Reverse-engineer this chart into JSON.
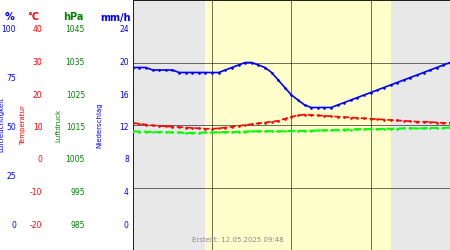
{
  "created_text": "Erstellt: 12.05.2025 09:48",
  "bg_day_color": "#ffffcc",
  "bg_night_color": "#e8e8e8",
  "day_start": 5.5,
  "day_end": 19.5,
  "pct_ylim": [
    0,
    100
  ],
  "temp_min": -20,
  "temp_max": 40,
  "hpa_min": 985,
  "hpa_max": 1045,
  "mm_min": 0,
  "mm_max": 24,
  "ylabel_left_pct": [
    0,
    25,
    50,
    75,
    100
  ],
  "ylabel_left_temp": [
    -20,
    -10,
    0,
    10,
    20,
    30,
    40
  ],
  "ylabel_left_hpa": [
    985,
    995,
    1005,
    1015,
    1025,
    1035,
    1045
  ],
  "ylabel_right_mm": [
    0,
    4,
    8,
    12,
    16,
    20,
    24
  ],
  "blue_humidity_data": [
    [
      0.0,
      73
    ],
    [
      0.5,
      73
    ],
    [
      1.0,
      73
    ],
    [
      1.5,
      72
    ],
    [
      2.0,
      72
    ],
    [
      2.5,
      72
    ],
    [
      3.0,
      72
    ],
    [
      3.5,
      71
    ],
    [
      4.0,
      71
    ],
    [
      4.5,
      71
    ],
    [
      5.0,
      71
    ],
    [
      5.5,
      71
    ],
    [
      6.0,
      71
    ],
    [
      6.5,
      71
    ],
    [
      7.0,
      72
    ],
    [
      7.5,
      73
    ],
    [
      8.0,
      74
    ],
    [
      8.5,
      75
    ],
    [
      9.0,
      75
    ],
    [
      9.5,
      74
    ],
    [
      10.0,
      73
    ],
    [
      10.5,
      71
    ],
    [
      11.0,
      68
    ],
    [
      11.5,
      65
    ],
    [
      12.0,
      62
    ],
    [
      12.5,
      60
    ],
    [
      13.0,
      58
    ],
    [
      13.5,
      57
    ],
    [
      14.0,
      57
    ],
    [
      14.5,
      57
    ],
    [
      15.0,
      57
    ],
    [
      15.5,
      58
    ],
    [
      16.0,
      59
    ],
    [
      16.5,
      60
    ],
    [
      17.0,
      61
    ],
    [
      17.5,
      62
    ],
    [
      18.0,
      63
    ],
    [
      18.5,
      64
    ],
    [
      19.0,
      65
    ],
    [
      19.5,
      66
    ],
    [
      20.0,
      67
    ],
    [
      20.5,
      68
    ],
    [
      21.0,
      69
    ],
    [
      21.5,
      70
    ],
    [
      22.0,
      71
    ],
    [
      22.5,
      72
    ],
    [
      23.0,
      73
    ],
    [
      23.5,
      74
    ],
    [
      24.0,
      75
    ]
  ],
  "red_temp_data": [
    [
      0.0,
      10.5
    ],
    [
      0.5,
      10.3
    ],
    [
      1.0,
      10.1
    ],
    [
      1.5,
      9.9
    ],
    [
      2.0,
      9.8
    ],
    [
      2.5,
      9.7
    ],
    [
      3.0,
      9.6
    ],
    [
      3.5,
      9.5
    ],
    [
      4.0,
      9.4
    ],
    [
      4.5,
      9.3
    ],
    [
      5.0,
      9.2
    ],
    [
      5.5,
      9.1
    ],
    [
      6.0,
      9.1
    ],
    [
      6.5,
      9.2
    ],
    [
      7.0,
      9.4
    ],
    [
      7.5,
      9.6
    ],
    [
      8.0,
      9.8
    ],
    [
      8.5,
      10.0
    ],
    [
      9.0,
      10.2
    ],
    [
      9.5,
      10.4
    ],
    [
      10.0,
      10.6
    ],
    [
      10.5,
      10.8
    ],
    [
      11.0,
      11.0
    ],
    [
      11.5,
      11.5
    ],
    [
      12.0,
      12.0
    ],
    [
      12.5,
      12.3
    ],
    [
      13.0,
      12.5
    ],
    [
      13.5,
      12.4
    ],
    [
      14.0,
      12.3
    ],
    [
      14.5,
      12.2
    ],
    [
      15.0,
      12.1
    ],
    [
      15.5,
      12.0
    ],
    [
      16.0,
      11.9
    ],
    [
      16.5,
      11.8
    ],
    [
      17.0,
      11.7
    ],
    [
      17.5,
      11.6
    ],
    [
      18.0,
      11.5
    ],
    [
      18.5,
      11.4
    ],
    [
      19.0,
      11.3
    ],
    [
      19.5,
      11.2
    ],
    [
      20.0,
      11.1
    ],
    [
      20.5,
      11.0
    ],
    [
      21.0,
      10.9
    ],
    [
      21.5,
      10.8
    ],
    [
      22.0,
      10.8
    ],
    [
      22.5,
      10.7
    ],
    [
      23.0,
      10.6
    ],
    [
      23.5,
      10.5
    ],
    [
      24.0,
      10.5
    ]
  ],
  "green_pressure_data": [
    [
      0.0,
      1013.5
    ],
    [
      0.5,
      1013.4
    ],
    [
      1.0,
      1013.4
    ],
    [
      1.5,
      1013.3
    ],
    [
      2.0,
      1013.3
    ],
    [
      2.5,
      1013.3
    ],
    [
      3.0,
      1013.2
    ],
    [
      3.5,
      1013.2
    ],
    [
      4.0,
      1013.1
    ],
    [
      4.5,
      1013.1
    ],
    [
      5.0,
      1013.1
    ],
    [
      5.5,
      1013.2
    ],
    [
      6.0,
      1013.2
    ],
    [
      6.5,
      1013.3
    ],
    [
      7.0,
      1013.3
    ],
    [
      7.5,
      1013.3
    ],
    [
      8.0,
      1013.4
    ],
    [
      8.5,
      1013.4
    ],
    [
      9.0,
      1013.5
    ],
    [
      9.5,
      1013.5
    ],
    [
      10.0,
      1013.5
    ],
    [
      10.5,
      1013.5
    ],
    [
      11.0,
      1013.5
    ],
    [
      11.5,
      1013.5
    ],
    [
      12.0,
      1013.6
    ],
    [
      12.5,
      1013.6
    ],
    [
      13.0,
      1013.6
    ],
    [
      13.5,
      1013.6
    ],
    [
      14.0,
      1013.7
    ],
    [
      14.5,
      1013.7
    ],
    [
      15.0,
      1013.8
    ],
    [
      15.5,
      1013.8
    ],
    [
      16.0,
      1013.9
    ],
    [
      16.5,
      1013.9
    ],
    [
      17.0,
      1014.0
    ],
    [
      17.5,
      1014.0
    ],
    [
      18.0,
      1014.0
    ],
    [
      18.5,
      1014.0
    ],
    [
      19.0,
      1014.1
    ],
    [
      19.5,
      1014.1
    ],
    [
      20.0,
      1014.1
    ],
    [
      20.5,
      1014.2
    ],
    [
      21.0,
      1014.2
    ],
    [
      21.5,
      1014.2
    ],
    [
      22.0,
      1014.2
    ],
    [
      22.5,
      1014.3
    ],
    [
      23.0,
      1014.3
    ],
    [
      23.5,
      1014.3
    ],
    [
      24.0,
      1014.4
    ]
  ]
}
